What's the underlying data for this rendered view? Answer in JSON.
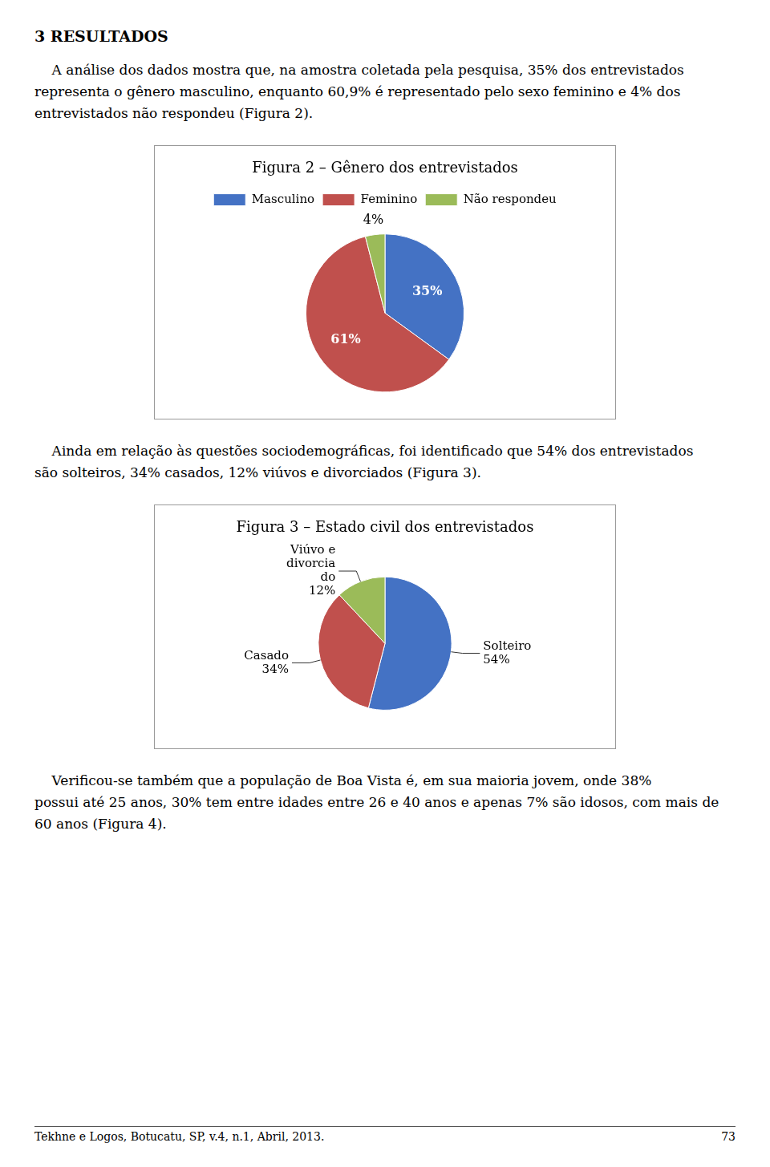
{
  "heading": "3 RESULTADOS",
  "paragraphs": [
    [
      "    A análise dos dados mostra que, na amostra coletada pela pesquisa, 35% dos entrevistados",
      "representa o gênero masculino, enquanto 60,9% é representado pelo sexo feminino e 4% dos",
      "entrevistados não respondeu (Figura 2)."
    ],
    [
      "    Ainda em relação às questões sociodemográficas, foi identificado que 54% dos entrevistados",
      "são solteiros, 34% casados, 12% viúvos e divorciados (Figura 3)."
    ],
    [
      "    Verificou-se também que a população de Boa Vista é, em sua maioria jovem, onde 38%",
      "possui até 25 anos, 30% tem entre idades entre 26 e 40 anos e apenas 7% são idosos, com mais de",
      "60 anos (Figura 4)."
    ]
  ],
  "footer": {
    "left": "Tekhne e Logos, Botucatu, SP, v.4, n.1, Abril, 2013.",
    "right": "73"
  },
  "chart_data": [
    {
      "type": "pie",
      "title": "Figura 2 – Gênero dos entrevistados",
      "categories": [
        "Masculino",
        "Feminino",
        "Não respondeu"
      ],
      "values": [
        35,
        61,
        4
      ],
      "value_labels": [
        "35%",
        "61%",
        "4%"
      ],
      "colors": [
        "#4472C4",
        "#C0504D",
        "#9BBB59"
      ],
      "legend": "top",
      "data_labels": true
    },
    {
      "type": "pie",
      "title": "Figura 3 – Estado civil dos entrevistados",
      "categories": [
        "Solteiro",
        "Casado",
        "Viúvo e\ndivorcia\ndo"
      ],
      "values": [
        54,
        34,
        12
      ],
      "value_labels": [
        "54%",
        "34%",
        "12%"
      ],
      "colors": [
        "#4472C4",
        "#C0504D",
        "#9BBB59"
      ],
      "data_labels": true
    }
  ]
}
